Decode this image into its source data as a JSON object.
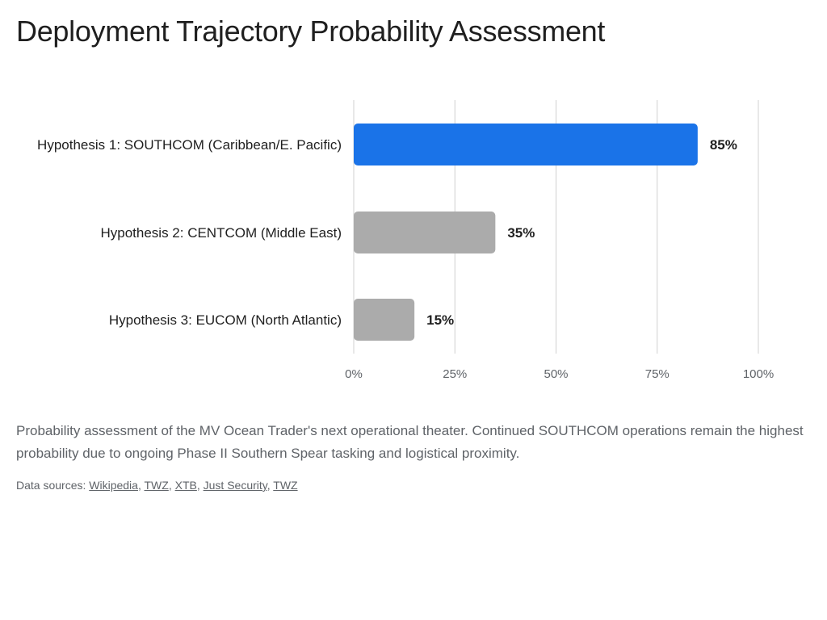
{
  "title": "Deployment Trajectory Probability Assessment",
  "caption": "Probability assessment of the MV Ocean Trader's next operational theater. Continued SOUTHCOM operations remain the highest probability due to ongoing Phase II Southern Spear tasking and logistical proximity.",
  "sources": {
    "prefix": "Data sources: ",
    "links": [
      "Wikipedia",
      "TWZ",
      "XTB",
      "Just Security",
      "TWZ"
    ],
    "separator": ", "
  },
  "colors": {
    "highlight": "#1a73e8",
    "default_bar": "#ababab",
    "grid": "#d0d0d0",
    "tick_text": "#5f6368",
    "label_text": "#1f1f1f"
  },
  "chart_data": {
    "type": "bar",
    "orientation": "horizontal",
    "categories": [
      "Hypothesis 1: SOUTHCOM (Caribbean/E. Pacific)",
      "Hypothesis 2: CENTCOM (Middle East)",
      "Hypothesis 3: EUCOM (North Atlantic)"
    ],
    "values": [
      85,
      35,
      15
    ],
    "value_labels": [
      "85%",
      "35%",
      "15%"
    ],
    "highlight_index": 0,
    "xlim": [
      0,
      100
    ],
    "xticks": [
      0,
      25,
      50,
      75,
      100
    ],
    "xtick_labels": [
      "0%",
      "25%",
      "50%",
      "75%",
      "100%"
    ],
    "xlabel": "",
    "ylabel": "",
    "grid": true,
    "legend": "none"
  }
}
